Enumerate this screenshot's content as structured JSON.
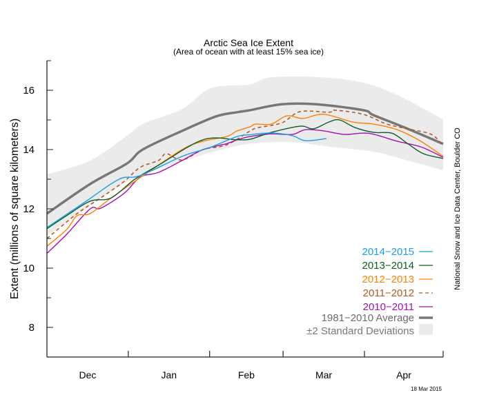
{
  "chart_data": {
    "type": "line",
    "title": "Arctic Sea Ice Extent",
    "subtitle": "(Area of ocean with at least 15% sea ice)",
    "ylabel": "Extent (millions of square kilometers)",
    "xlabel": "",
    "ylim": [
      7,
      17
    ],
    "xlim": [
      "12-01",
      "04-30"
    ],
    "y_ticks": [
      8,
      10,
      12,
      14,
      16
    ],
    "x_tick_labels": [
      "Dec",
      "Jan",
      "Feb",
      "Mar",
      "Apr"
    ],
    "grid": false,
    "legend_placement": "bottom-right",
    "credit": "National Snow and Ice Data Center, Boulder CO",
    "date_stamp": "18 Mar 2015",
    "band": {
      "name": "±2 Standard Deviations",
      "color": "#ebebeb",
      "upper": [
        [
          "12-01",
          13.16
        ],
        [
          "12-17",
          13.63
        ],
        [
          "12-31",
          14.47
        ],
        [
          "01-06",
          14.86
        ],
        [
          "01-21",
          15.37
        ],
        [
          "02-01",
          16.07
        ],
        [
          "02-16",
          16.2
        ],
        [
          "02-24",
          16.44
        ],
        [
          "03-15",
          16.44
        ],
        [
          "03-31",
          16.26
        ],
        [
          "04-13",
          15.84
        ],
        [
          "04-30",
          15.02
        ]
      ],
      "lower": [
        [
          "12-01",
          11.1
        ],
        [
          "12-17",
          12.1
        ],
        [
          "12-25",
          12.6
        ],
        [
          "01-06",
          13.16
        ],
        [
          "01-21",
          13.6
        ],
        [
          "02-03",
          13.95
        ],
        [
          "02-16",
          14.2
        ],
        [
          "03-04",
          14.25
        ],
        [
          "03-18",
          14.1
        ],
        [
          "04-04",
          13.93
        ],
        [
          "04-17",
          13.63
        ],
        [
          "04-30",
          13.3
        ]
      ]
    },
    "series": [
      {
        "name": "1981−2010 Average",
        "color": "#777777",
        "style": "thick",
        "points": [
          [
            "12-01",
            11.84
          ],
          [
            "12-17",
            12.84
          ],
          [
            "12-31",
            13.53
          ],
          [
            "01-06",
            14.0
          ],
          [
            "01-21",
            14.63
          ],
          [
            "02-03",
            15.12
          ],
          [
            "02-11",
            15.26
          ],
          [
            "02-16",
            15.33
          ],
          [
            "02-28",
            15.53
          ],
          [
            "03-13",
            15.53
          ],
          [
            "03-31",
            15.33
          ],
          [
            "04-04",
            15.16
          ],
          [
            "04-17",
            14.7
          ],
          [
            "04-30",
            14.19
          ]
        ]
      },
      {
        "name": "2011−2012",
        "color": "#b35a22",
        "style": "dashed",
        "points": [
          [
            "12-01",
            11.0
          ],
          [
            "12-12",
            11.84
          ],
          [
            "12-21",
            12.37
          ],
          [
            "12-30",
            12.93
          ],
          [
            "01-05",
            13.4
          ],
          [
            "01-12",
            13.63
          ],
          [
            "01-15",
            13.86
          ],
          [
            "01-21",
            13.65
          ],
          [
            "01-29",
            14.0
          ],
          [
            "02-07",
            14.16
          ],
          [
            "02-16",
            14.63
          ],
          [
            "02-19",
            14.74
          ],
          [
            "02-28",
            14.9
          ],
          [
            "03-07",
            15.28
          ],
          [
            "03-18",
            15.26
          ],
          [
            "03-20",
            15.33
          ],
          [
            "03-31",
            15.19
          ],
          [
            "04-09",
            14.86
          ],
          [
            "04-17",
            14.7
          ],
          [
            "04-26",
            14.51
          ],
          [
            "04-30",
            14.12
          ]
        ]
      },
      {
        "name": "2010−2011",
        "color": "#a50db5",
        "style": "solid",
        "points": [
          [
            "12-01",
            10.5
          ],
          [
            "12-08",
            11.14
          ],
          [
            "12-17",
            12.0
          ],
          [
            "12-21",
            12.02
          ],
          [
            "12-30",
            12.53
          ],
          [
            "01-05",
            13.07
          ],
          [
            "01-12",
            13.23
          ],
          [
            "01-21",
            13.63
          ],
          [
            "01-29",
            14.0
          ],
          [
            "02-07",
            14.2
          ],
          [
            "02-11",
            14.33
          ],
          [
            "02-16",
            14.44
          ],
          [
            "02-24",
            14.53
          ],
          [
            "03-04",
            14.51
          ],
          [
            "03-09",
            14.67
          ],
          [
            "03-16",
            14.63
          ],
          [
            "03-24",
            14.51
          ],
          [
            "04-02",
            14.55
          ],
          [
            "04-13",
            14.28
          ],
          [
            "04-22",
            14.09
          ],
          [
            "04-30",
            13.74
          ]
        ]
      },
      {
        "name": "2012−2013",
        "color": "#ff8000",
        "style": "solid",
        "points": [
          [
            "12-01",
            10.74
          ],
          [
            "12-08",
            11.3
          ],
          [
            "12-12",
            11.77
          ],
          [
            "12-17",
            11.84
          ],
          [
            "12-25",
            12.37
          ],
          [
            "01-05",
            13.05
          ],
          [
            "01-21",
            14.0
          ],
          [
            "01-29",
            14.28
          ],
          [
            "02-07",
            14.44
          ],
          [
            "02-11",
            14.63
          ],
          [
            "02-16",
            14.77
          ],
          [
            "02-18",
            14.86
          ],
          [
            "02-24",
            14.86
          ],
          [
            "03-02",
            15.14
          ],
          [
            "03-08",
            15.05
          ],
          [
            "03-16",
            15.19
          ],
          [
            "03-27",
            14.93
          ],
          [
            "04-04",
            14.86
          ],
          [
            "04-13",
            14.67
          ],
          [
            "04-22",
            14.28
          ],
          [
            "04-30",
            13.77
          ]
        ]
      },
      {
        "name": "2013−2014",
        "color": "#0b5e23",
        "style": "solid",
        "points": [
          [
            "12-01",
            11.33
          ],
          [
            "12-08",
            11.77
          ],
          [
            "12-17",
            12.26
          ],
          [
            "12-25",
            12.37
          ],
          [
            "01-03",
            13.0
          ],
          [
            "01-12",
            13.47
          ],
          [
            "01-29",
            14.33
          ],
          [
            "02-11",
            14.33
          ],
          [
            "02-16",
            14.35
          ],
          [
            "02-24",
            14.58
          ],
          [
            "03-07",
            14.79
          ],
          [
            "03-12",
            14.7
          ],
          [
            "03-18",
            14.93
          ],
          [
            "03-22",
            15.0
          ],
          [
            "03-28",
            14.74
          ],
          [
            "04-04",
            14.58
          ],
          [
            "04-11",
            14.55
          ],
          [
            "04-17",
            14.2
          ],
          [
            "04-23",
            13.86
          ],
          [
            "04-30",
            13.7
          ]
        ]
      },
      {
        "name": "2014−2015",
        "color": "#1a9ee8",
        "style": "solid",
        "points": [
          [
            "12-01",
            11.37
          ],
          [
            "12-15",
            12.23
          ],
          [
            "12-28",
            13.0
          ],
          [
            "01-05",
            13.12
          ],
          [
            "01-21",
            13.77
          ],
          [
            "01-31",
            14.05
          ],
          [
            "02-11",
            14.44
          ],
          [
            "02-16",
            14.5
          ],
          [
            "02-24",
            14.56
          ],
          [
            "03-04",
            14.47
          ],
          [
            "03-09",
            14.3
          ],
          [
            "03-17",
            14.37
          ]
        ]
      }
    ],
    "legend_order": [
      "2014−2015",
      "2013−2014",
      "2012−2013",
      "2011−2012",
      "2010−2011",
      "1981−2010 Average",
      "±2 Standard Deviations"
    ]
  }
}
